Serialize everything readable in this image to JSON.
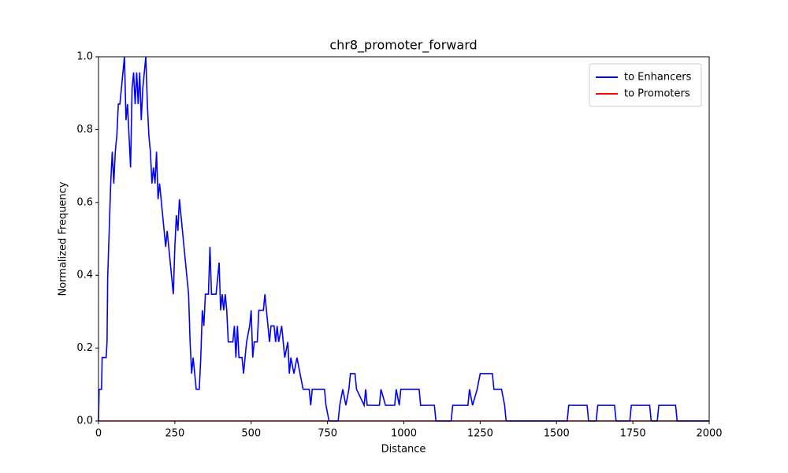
{
  "chart_data": {
    "type": "line",
    "title": "chr8_promoter_forward",
    "xlabel": "Distance",
    "ylabel": "Normalized Frequency",
    "xlim": [
      0,
      2000
    ],
    "ylim": [
      0,
      1.0
    ],
    "xticks": [
      0,
      250,
      500,
      750,
      1000,
      1250,
      1500,
      1750,
      2000
    ],
    "yticks": [
      {
        "value": 0,
        "label": "0.0"
      },
      0.2,
      0.4,
      0.6,
      0.8,
      {
        "value": 1,
        "label": "1.0"
      }
    ],
    "legend": "upper right",
    "series": [
      {
        "name": "to Enhancers",
        "color": "#0000ff",
        "x": [
          0,
          2,
          10,
          12,
          25,
          28,
          30,
          35,
          40,
          45,
          50,
          55,
          60,
          65,
          70,
          75,
          80,
          85,
          90,
          95,
          100,
          105,
          110,
          115,
          120,
          125,
          130,
          135,
          140,
          145,
          150,
          155,
          160,
          165,
          170,
          175,
          180,
          185,
          190,
          195,
          200,
          205,
          210,
          215,
          220,
          225,
          230,
          235,
          240,
          245,
          250,
          255,
          260,
          265,
          270,
          275,
          280,
          290,
          295,
          300,
          305,
          310,
          320,
          330,
          335,
          340,
          345,
          350,
          360,
          365,
          370,
          380,
          385,
          390,
          395,
          400,
          405,
          410,
          415,
          420,
          425,
          440,
          445,
          450,
          455,
          460,
          470,
          475,
          480,
          485,
          495,
          500,
          505,
          510,
          520,
          525,
          540,
          545,
          550,
          555,
          560,
          565,
          575,
          580,
          585,
          590,
          600,
          605,
          610,
          620,
          625,
          630,
          640,
          650,
          660,
          670,
          690,
          695,
          700,
          740,
          745,
          755,
          785,
          790,
          800,
          810,
          820,
          825,
          840,
          845,
          870,
          875,
          880,
          920,
          925,
          940,
          970,
          975,
          985,
          990,
          1050,
          1055,
          1100,
          1105,
          1155,
          1160,
          1210,
          1215,
          1225,
          1240,
          1250,
          1290,
          1295,
          1320,
          1330,
          1335,
          1535,
          1540,
          1600,
          1605,
          1630,
          1635,
          1690,
          1695,
          1740,
          1745,
          1805,
          1810,
          1830,
          1835,
          1890,
          1895,
          2000
        ],
        "values": [
          0,
          0.087,
          0.087,
          0.174,
          0.174,
          0.217,
          0.391,
          0.522,
          0.652,
          0.739,
          0.652,
          0.739,
          0.783,
          0.87,
          0.87,
          0.913,
          0.957,
          1.0,
          0.826,
          0.87,
          0.783,
          0.696,
          0.913,
          0.957,
          0.87,
          0.957,
          0.87,
          0.957,
          0.826,
          0.913,
          0.957,
          1.0,
          0.87,
          0.783,
          0.739,
          0.652,
          0.696,
          0.652,
          0.739,
          0.609,
          0.652,
          0.609,
          0.565,
          0.522,
          0.478,
          0.522,
          0.478,
          0.435,
          0.391,
          0.348,
          0.478,
          0.565,
          0.522,
          0.609,
          0.565,
          0.522,
          0.478,
          0.391,
          0.348,
          0.217,
          0.13,
          0.174,
          0.087,
          0.087,
          0.174,
          0.304,
          0.261,
          0.348,
          0.348,
          0.478,
          0.348,
          0.348,
          0.348,
          0.391,
          0.435,
          0.304,
          0.348,
          0.304,
          0.348,
          0.304,
          0.217,
          0.217,
          0.261,
          0.174,
          0.261,
          0.174,
          0.174,
          0.13,
          0.174,
          0.217,
          0.261,
          0.304,
          0.174,
          0.217,
          0.217,
          0.304,
          0.304,
          0.348,
          0.304,
          0.261,
          0.217,
          0.261,
          0.261,
          0.217,
          0.261,
          0.217,
          0.261,
          0.217,
          0.174,
          0.217,
          0.13,
          0.174,
          0.13,
          0.174,
          0.13,
          0.087,
          0.087,
          0.043,
          0.087,
          0.087,
          0.043,
          0,
          0,
          0.043,
          0.087,
          0.043,
          0.087,
          0.13,
          0.13,
          0.087,
          0.043,
          0.087,
          0.043,
          0.043,
          0.087,
          0.043,
          0.043,
          0.087,
          0.043,
          0.087,
          0.087,
          0.043,
          0.043,
          0,
          0,
          0.043,
          0.043,
          0.087,
          0.043,
          0.087,
          0.13,
          0.13,
          0.087,
          0.087,
          0.043,
          0,
          0,
          0.043,
          0.043,
          0,
          0,
          0.043,
          0.043,
          0,
          0,
          0.043,
          0.043,
          0,
          0,
          0.043,
          0.043,
          0,
          0
        ]
      },
      {
        "name": "to Promoters",
        "color": "#ff0000",
        "x": [
          0,
          2000
        ],
        "values": [
          0,
          0
        ]
      }
    ]
  }
}
